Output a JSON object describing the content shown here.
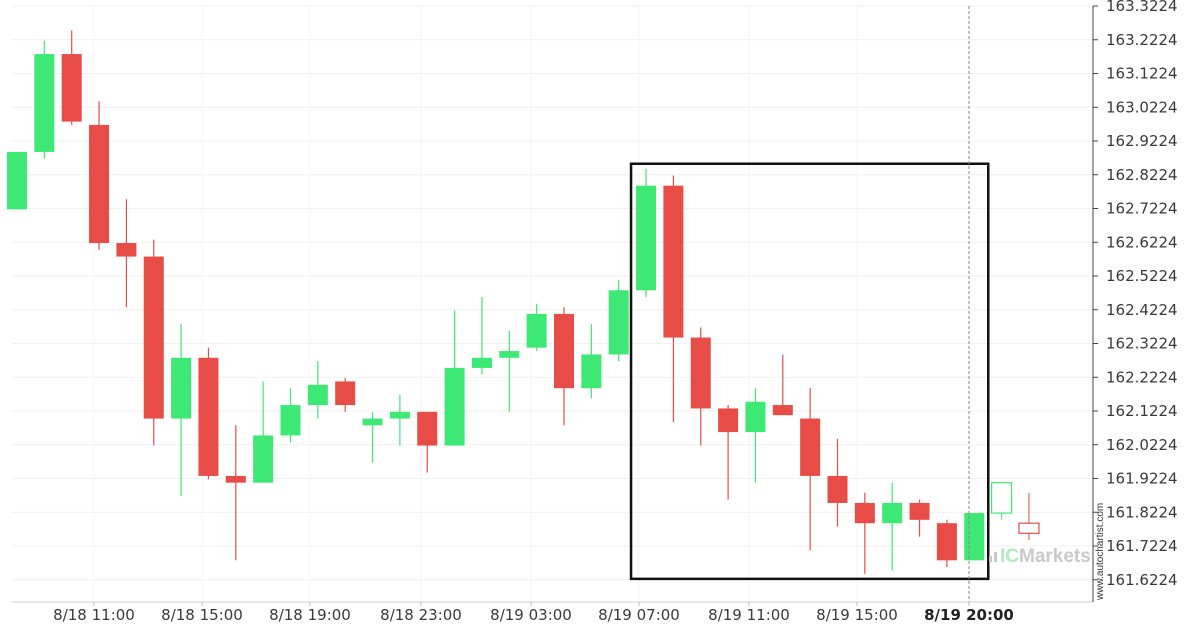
{
  "chart_data": {
    "type": "candlestick",
    "y_ticks": [
      "163.3224",
      "163.2224",
      "163.1224",
      "163.0224",
      "162.9224",
      "162.8224",
      "162.7224",
      "162.6224",
      "162.5224",
      "162.4224",
      "162.3224",
      "162.2224",
      "162.1224",
      "162.0224",
      "161.9224",
      "161.8224",
      "161.7224",
      "161.6224"
    ],
    "x_ticks": [
      "8/18 11:00",
      "8/18 15:00",
      "8/18 19:00",
      "8/18 23:00",
      "8/19 03:00",
      "8/19 07:00",
      "8/19 11:00",
      "8/19 15:00",
      "8/19 20:00"
    ],
    "ylim": [
      161.56,
      163.33
    ],
    "grid": true,
    "bullish_color": "#3ee874",
    "bearish_color": "#e84c46",
    "candles": [
      {
        "open": 162.72,
        "high": 162.89,
        "low": 162.72,
        "close": 162.89
      },
      {
        "open": 162.89,
        "high": 163.22,
        "low": 162.87,
        "close": 163.18
      },
      {
        "open": 163.18,
        "high": 163.25,
        "low": 162.97,
        "close": 162.98
      },
      {
        "open": 162.97,
        "high": 163.04,
        "low": 162.6,
        "close": 162.62
      },
      {
        "open": 162.62,
        "high": 162.75,
        "low": 162.43,
        "close": 162.58
      },
      {
        "open": 162.58,
        "high": 162.63,
        "low": 162.02,
        "close": 162.1
      },
      {
        "open": 162.1,
        "high": 162.38,
        "low": 161.87,
        "close": 162.28
      },
      {
        "open": 162.28,
        "high": 162.31,
        "low": 161.92,
        "close": 161.93
      },
      {
        "open": 161.93,
        "high": 162.08,
        "low": 161.68,
        "close": 161.91
      },
      {
        "open": 161.91,
        "high": 162.21,
        "low": 161.91,
        "close": 162.05
      },
      {
        "open": 162.05,
        "high": 162.19,
        "low": 162.03,
        "close": 162.14
      },
      {
        "open": 162.14,
        "high": 162.27,
        "low": 162.1,
        "close": 162.2
      },
      {
        "open": 162.21,
        "high": 162.22,
        "low": 162.12,
        "close": 162.14
      },
      {
        "open": 162.08,
        "high": 162.12,
        "low": 161.97,
        "close": 162.1
      },
      {
        "open": 162.1,
        "high": 162.17,
        "low": 162.02,
        "close": 162.12
      },
      {
        "open": 162.12,
        "high": 162.12,
        "low": 161.94,
        "close": 162.02
      },
      {
        "open": 162.02,
        "high": 162.42,
        "low": 162.02,
        "close": 162.25
      },
      {
        "open": 162.25,
        "high": 162.46,
        "low": 162.23,
        "close": 162.28
      },
      {
        "open": 162.28,
        "high": 162.36,
        "low": 162.12,
        "close": 162.3
      },
      {
        "open": 162.31,
        "high": 162.44,
        "low": 162.3,
        "close": 162.41
      },
      {
        "open": 162.41,
        "high": 162.43,
        "low": 162.08,
        "close": 162.19
      },
      {
        "open": 162.19,
        "high": 162.38,
        "low": 162.16,
        "close": 162.29
      },
      {
        "open": 162.29,
        "high": 162.51,
        "low": 162.27,
        "close": 162.48
      },
      {
        "open": 162.48,
        "high": 162.84,
        "low": 162.46,
        "close": 162.79
      },
      {
        "open": 162.79,
        "high": 162.82,
        "low": 162.09,
        "close": 162.34
      },
      {
        "open": 162.34,
        "high": 162.37,
        "low": 162.02,
        "close": 162.13
      },
      {
        "open": 162.13,
        "high": 162.14,
        "low": 161.86,
        "close": 162.06
      },
      {
        "open": 162.06,
        "high": 162.19,
        "low": 161.91,
        "close": 162.15
      },
      {
        "open": 162.14,
        "high": 162.29,
        "low": 162.11,
        "close": 162.11
      },
      {
        "open": 162.1,
        "high": 162.19,
        "low": 161.71,
        "close": 161.93
      },
      {
        "open": 161.93,
        "high": 162.04,
        "low": 161.78,
        "close": 161.85
      },
      {
        "open": 161.85,
        "high": 161.88,
        "low": 161.64,
        "close": 161.79
      },
      {
        "open": 161.79,
        "high": 161.91,
        "low": 161.65,
        "close": 161.85
      },
      {
        "open": 161.85,
        "high": 161.86,
        "low": 161.75,
        "close": 161.8
      },
      {
        "open": 161.79,
        "high": 161.8,
        "low": 161.66,
        "close": 161.68
      },
      {
        "open": 161.68,
        "high": 161.82,
        "low": 161.68,
        "close": 161.82
      }
    ],
    "forecast_candles": [
      {
        "open": 161.82,
        "high": 161.91,
        "low": 161.8,
        "close": 161.91
      },
      {
        "open": 161.79,
        "high": 161.88,
        "low": 161.74,
        "close": 161.76
      }
    ],
    "pattern_box": {
      "first_candle": 23,
      "last_candle": 35,
      "top": 162.855,
      "bottom": 161.625
    },
    "now_marker": "8/19 20:00"
  },
  "branding": {
    "logo_prefix": "IC",
    "logo_suffix": "Markets",
    "watermark": "www.autochartist.com"
  }
}
